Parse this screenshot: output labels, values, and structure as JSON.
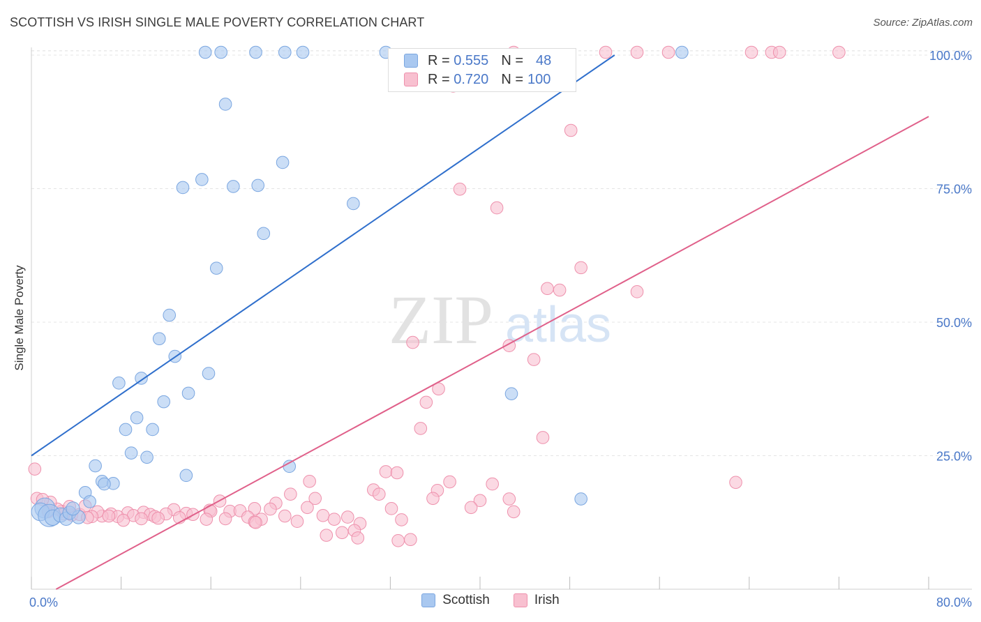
{
  "title": "SCOTTISH VS IRISH SINGLE MALE POVERTY CORRELATION CHART",
  "source": "Source: ZipAtlas.com",
  "watermark": {
    "zip": "ZIP",
    "atlas": "atlas"
  },
  "stats": [
    {
      "r_label": "R =",
      "r_value": "0.555",
      "n_label": "N =",
      "n_value": "48",
      "color": "#a9c8f0",
      "border": "#7aa6e0"
    },
    {
      "r_label": "R =",
      "r_value": "0.720",
      "n_label": "N =",
      "n_value": "100",
      "color": "#f8c0d0",
      "border": "#ee90ac"
    }
  ],
  "chart_data": {
    "type": "scatter",
    "ylabel": "Single Male Poverty",
    "xlim": [
      0,
      80
    ],
    "ylim": [
      0,
      102
    ],
    "x_tick_labels": [
      "0.0%",
      "80.0%"
    ],
    "y_ticks": [
      25,
      50,
      75,
      100
    ],
    "y_tick_labels": [
      "25.0%",
      "50.0%",
      "75.0%",
      "100.0%"
    ],
    "grid": "horizontal dashed",
    "legend_position": "bottom-center",
    "series": [
      {
        "name": "Scottish",
        "color": "#a9c8f0",
        "stroke": "#7aa6e0",
        "line_color": "#2f6fcc",
        "trend": {
          "x": [
            0,
            52
          ],
          "y": [
            25,
            100
          ]
        },
        "points": [
          [
            15.5,
            100
          ],
          [
            16.9,
            100
          ],
          [
            20.0,
            100
          ],
          [
            22.6,
            100
          ],
          [
            24.2,
            100
          ],
          [
            31.6,
            100
          ],
          [
            58.0,
            100
          ],
          [
            17.3,
            90.8
          ],
          [
            22.4,
            79.9
          ],
          [
            13.5,
            75.2
          ],
          [
            15.2,
            76.7
          ],
          [
            18.0,
            75.4
          ],
          [
            20.2,
            75.6
          ],
          [
            28.7,
            72.2
          ],
          [
            20.7,
            66.6
          ],
          [
            16.5,
            60.1
          ],
          [
            12.3,
            51.3
          ],
          [
            11.4,
            46.9
          ],
          [
            12.8,
            43.6
          ],
          [
            7.8,
            38.6
          ],
          [
            9.8,
            39.5
          ],
          [
            15.8,
            40.4
          ],
          [
            14.0,
            36.7
          ],
          [
            11.8,
            35.1
          ],
          [
            9.4,
            32.1
          ],
          [
            8.4,
            29.9
          ],
          [
            10.8,
            29.9
          ],
          [
            8.9,
            25.5
          ],
          [
            10.3,
            24.7
          ],
          [
            5.7,
            23.1
          ],
          [
            23.0,
            23.0
          ],
          [
            13.8,
            21.3
          ],
          [
            6.3,
            20.2
          ],
          [
            7.3,
            19.8
          ],
          [
            6.5,
            19.7
          ],
          [
            4.8,
            18.1
          ],
          [
            5.2,
            16.4
          ],
          [
            42.8,
            36.6
          ],
          [
            49.0,
            16.9
          ],
          [
            1.2,
            15.2
          ],
          [
            0.8,
            14.5
          ],
          [
            1.6,
            13.8
          ],
          [
            1.9,
            13.4
          ],
          [
            2.6,
            13.9
          ],
          [
            3.1,
            13.2
          ],
          [
            3.4,
            14.3
          ],
          [
            4.2,
            13.5
          ],
          [
            3.7,
            15.1
          ]
        ],
        "point_sizes": [
          11,
          11,
          11,
          11,
          11,
          11,
          11,
          11,
          11,
          11,
          11,
          11,
          11,
          11,
          11,
          11,
          11,
          11,
          11,
          11,
          11,
          11,
          11,
          11,
          11,
          11,
          11,
          11,
          11,
          11,
          11,
          11,
          11,
          11,
          11,
          11,
          11,
          11,
          11,
          18,
          16,
          20,
          14,
          13,
          12,
          12,
          12,
          12
        ]
      },
      {
        "name": "Irish",
        "color": "#f8c0d0",
        "stroke": "#ee90ac",
        "line_color": "#e0608a",
        "trend": {
          "x": [
            2.2,
            80
          ],
          "y": [
            0,
            88.5
          ]
        },
        "points": [
          [
            43.0,
            100
          ],
          [
            51.2,
            100
          ],
          [
            54.0,
            100
          ],
          [
            56.8,
            100
          ],
          [
            64.2,
            100
          ],
          [
            66.0,
            100
          ],
          [
            66.7,
            100
          ],
          [
            72.0,
            100
          ],
          [
            37.6,
            94.2
          ],
          [
            48.1,
            85.9
          ],
          [
            38.2,
            74.9
          ],
          [
            41.5,
            71.4
          ],
          [
            49.0,
            60.2
          ],
          [
            46.0,
            56.3
          ],
          [
            47.1,
            56.0
          ],
          [
            54.0,
            55.7
          ],
          [
            34.0,
            46.2
          ],
          [
            42.6,
            45.6
          ],
          [
            44.8,
            43.0
          ],
          [
            36.3,
            37.5
          ],
          [
            35.2,
            35.0
          ],
          [
            34.7,
            30.1
          ],
          [
            45.6,
            28.4
          ],
          [
            0.3,
            22.5
          ],
          [
            31.6,
            22.0
          ],
          [
            32.6,
            21.8
          ],
          [
            24.8,
            20.2
          ],
          [
            37.3,
            20.1
          ],
          [
            41.1,
            19.7
          ],
          [
            62.8,
            20.0
          ],
          [
            30.5,
            18.6
          ],
          [
            36.2,
            18.5
          ],
          [
            23.1,
            17.8
          ],
          [
            31.0,
            17.8
          ],
          [
            25.3,
            17.0
          ],
          [
            35.8,
            17.0
          ],
          [
            42.6,
            16.9
          ],
          [
            40.0,
            16.6
          ],
          [
            16.8,
            16.5
          ],
          [
            21.8,
            16.1
          ],
          [
            39.2,
            15.3
          ],
          [
            24.6,
            15.3
          ],
          [
            19.9,
            15.1
          ],
          [
            21.3,
            15.0
          ],
          [
            32.1,
            15.1
          ],
          [
            12.7,
            14.9
          ],
          [
            15.9,
            14.8
          ],
          [
            17.7,
            14.6
          ],
          [
            18.6,
            14.7
          ],
          [
            13.8,
            14.2
          ],
          [
            16.0,
            14.6
          ],
          [
            14.4,
            14.0
          ],
          [
            12.0,
            14.1
          ],
          [
            43.0,
            14.5
          ],
          [
            8.6,
            14.3
          ],
          [
            10.0,
            14.4
          ],
          [
            10.6,
            14.0
          ],
          [
            7.1,
            14.1
          ],
          [
            7.7,
            13.6
          ],
          [
            11.0,
            13.6
          ],
          [
            9.1,
            13.8
          ],
          [
            6.3,
            13.7
          ],
          [
            5.9,
            14.5
          ],
          [
            5.4,
            13.6
          ],
          [
            3.6,
            13.9
          ],
          [
            2.7,
            14.6
          ],
          [
            4.3,
            14.0
          ],
          [
            1.5,
            14.5
          ],
          [
            2.3,
            15.0
          ],
          [
            2.9,
            14.1
          ],
          [
            3.4,
            15.5
          ],
          [
            4.8,
            15.6
          ],
          [
            1.7,
            16.3
          ],
          [
            0.5,
            17.0
          ],
          [
            1.0,
            16.8
          ],
          [
            13.2,
            13.4
          ],
          [
            17.3,
            13.2
          ],
          [
            19.3,
            13.5
          ],
          [
            20.5,
            13.1
          ],
          [
            22.6,
            13.7
          ],
          [
            23.7,
            12.7
          ],
          [
            26.0,
            13.8
          ],
          [
            27.0,
            13.1
          ],
          [
            28.2,
            13.5
          ],
          [
            29.3,
            12.3
          ],
          [
            33.0,
            13.0
          ],
          [
            8.2,
            12.9
          ],
          [
            9.8,
            13.2
          ],
          [
            11.3,
            13.3
          ],
          [
            15.6,
            13.1
          ],
          [
            19.9,
            12.6
          ],
          [
            26.3,
            10.1
          ],
          [
            28.8,
            11.0
          ],
          [
            29.1,
            9.6
          ],
          [
            27.7,
            10.6
          ],
          [
            32.7,
            9.1
          ],
          [
            33.8,
            9.3
          ],
          [
            5.0,
            13.4
          ],
          [
            6.9,
            13.7
          ],
          [
            20.0,
            12.5
          ]
        ],
        "point_sizes": [
          11,
          11,
          11,
          11,
          11,
          11,
          11,
          11,
          11,
          11,
          11,
          11,
          11,
          11,
          11,
          11,
          11,
          11,
          11,
          11,
          11,
          11,
          11,
          11,
          11,
          11,
          11,
          11,
          11,
          11,
          11,
          11,
          11,
          11,
          11,
          11,
          11,
          11,
          11,
          11,
          11,
          11,
          11,
          11,
          11,
          11,
          11,
          11,
          11,
          11,
          11,
          11,
          11,
          11,
          11,
          11,
          11,
          11,
          11,
          11,
          11,
          11,
          11,
          11,
          11,
          11,
          11,
          11,
          11,
          11,
          11,
          11,
          11,
          11,
          11,
          11,
          11,
          11,
          11,
          11,
          11,
          11,
          11,
          11,
          11,
          11,
          11,
          11,
          11,
          11,
          11,
          11,
          11,
          11,
          11,
          11,
          11,
          11,
          11,
          11
        ]
      }
    ]
  },
  "legend": [
    {
      "label": "Scottish",
      "color": "#a9c8f0",
      "border": "#7aa6e0"
    },
    {
      "label": "Irish",
      "color": "#f8c0d0",
      "border": "#ee90ac"
    }
  ]
}
